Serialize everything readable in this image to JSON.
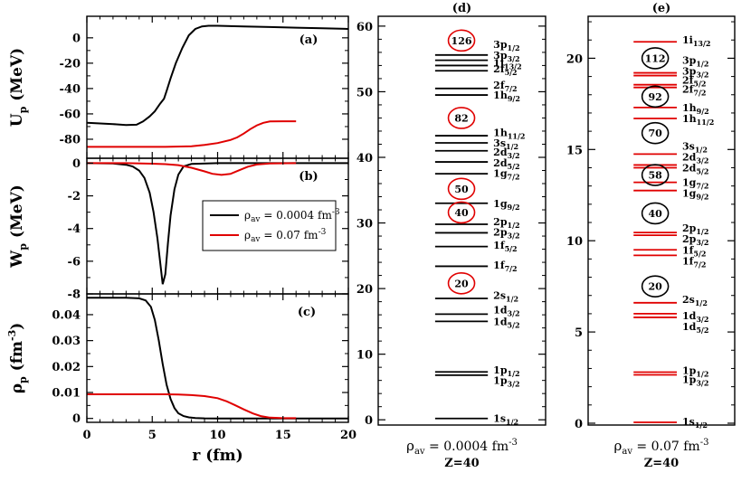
{
  "chart_data": [
    {
      "id": "a",
      "type": "line",
      "tag": "(a)",
      "ylabel_main": "U",
      "ylabel_sub": "p",
      "ylabel_unit": " (MeV)",
      "xlim": [
        0,
        20
      ],
      "ylim": [
        -95,
        17
      ],
      "yticks": [
        0,
        -20,
        -40,
        -60,
        -80
      ],
      "series": [
        {
          "name": "rho_av = 0.0004 fm^-3",
          "color": "#000000",
          "x": [
            0,
            1,
            2,
            3,
            3.8,
            4.3,
            4.8,
            5.2,
            5.6,
            5.9,
            6.1,
            6.4,
            6.8,
            7.3,
            7.8,
            8.3,
            8.8,
            9.3,
            10,
            12,
            14,
            16,
            18,
            20
          ],
          "y": [
            -67,
            -67.5,
            -68,
            -68.8,
            -68.5,
            -66,
            -62,
            -58,
            -52,
            -48,
            -42,
            -32,
            -20,
            -8,
            2,
            7,
            9,
            9.5,
            9.5,
            9.0,
            8.5,
            8.0,
            7.5,
            7.0
          ]
        },
        {
          "name": "rho_av = 0.07 fm^-3",
          "color": "#e00000",
          "x": [
            0,
            2,
            4,
            6,
            8,
            9,
            10,
            11,
            11.5,
            12,
            12.5,
            13,
            13.5,
            14,
            15,
            16
          ],
          "y": [
            -86,
            -86,
            -86,
            -86,
            -85.5,
            -84.5,
            -83,
            -80.5,
            -78.5,
            -75.5,
            -72,
            -69,
            -67,
            -66,
            -65.8,
            -65.8
          ]
        }
      ]
    },
    {
      "id": "b",
      "type": "line",
      "tag": "(b)",
      "ylabel_main": "W",
      "ylabel_sub": "p",
      "ylabel_unit": " (MeV)",
      "xlim": [
        0,
        20
      ],
      "ylim": [
        -8,
        0.3
      ],
      "yticks": [
        0,
        -2,
        -4,
        -6,
        -8
      ],
      "legend": {
        "entries": [
          {
            "sym": "ρ",
            "sub": "av",
            "text": " = 0.0004 fm",
            "sup": "-3",
            "color": "#000000"
          },
          {
            "sym": "ρ",
            "sub": "av",
            "text": " = 0.07 fm",
            "sup": "-3",
            "color": "#e00000"
          }
        ]
      },
      "series": [
        {
          "name": "rho_av = 0.0004 fm^-3",
          "color": "#000000",
          "x": [
            0,
            2,
            3,
            3.5,
            4,
            4.4,
            4.8,
            5.1,
            5.4,
            5.6,
            5.8,
            6.0,
            6.2,
            6.4,
            6.7,
            7.0,
            7.4,
            8,
            10,
            20
          ],
          "y": [
            0,
            -0.02,
            -0.1,
            -0.2,
            -0.45,
            -0.9,
            -1.8,
            -3.0,
            -4.6,
            -6.0,
            -7.4,
            -6.8,
            -4.9,
            -3.2,
            -1.6,
            -0.7,
            -0.2,
            -0.05,
            0,
            0
          ]
        },
        {
          "name": "rho_av = 0.07 fm^-3",
          "color": "#e00000",
          "x": [
            0,
            3,
            5,
            6,
            7,
            8,
            9,
            9.6,
            10.3,
            11,
            11.6,
            12.3,
            13,
            14,
            16
          ],
          "y": [
            0,
            0,
            -0.03,
            -0.06,
            -0.12,
            -0.28,
            -0.5,
            -0.65,
            -0.72,
            -0.65,
            -0.45,
            -0.22,
            -0.08,
            -0.02,
            0
          ]
        }
      ]
    },
    {
      "id": "c",
      "type": "line",
      "tag": "(c)",
      "ylabel_main": "ρ",
      "ylabel_sub": "p",
      "ylabel_unit": " (fm",
      "ylabel_sup": "-3",
      "ylabel_close": ")",
      "xlabel": "r (fm)",
      "xlim": [
        0,
        20
      ],
      "ylim": [
        -0.0015,
        0.048
      ],
      "xticks": [
        0,
        5,
        10,
        15,
        20
      ],
      "yticks": [
        0,
        0.01,
        0.02,
        0.03,
        0.04
      ],
      "yticklabels": [
        "0",
        "0.01",
        "0.02",
        "0.03",
        "0.04"
      ],
      "series": [
        {
          "name": "rho_av = 0.0004 fm^-3",
          "color": "#000000",
          "x": [
            0,
            3,
            4,
            4.5,
            4.9,
            5.2,
            5.5,
            5.8,
            6.1,
            6.4,
            6.7,
            7.0,
            7.4,
            7.8,
            8.3,
            9,
            10,
            12,
            20
          ],
          "y": [
            0.0465,
            0.0465,
            0.0463,
            0.0455,
            0.043,
            0.038,
            0.03,
            0.021,
            0.013,
            0.0075,
            0.004,
            0.002,
            0.0009,
            0.0004,
            0.00015,
            5e-05,
            0,
            0,
            0
          ]
        },
        {
          "name": "rho_av = 0.07 fm^-3",
          "color": "#e00000",
          "x": [
            0,
            3,
            6,
            7,
            8,
            9,
            10,
            10.7,
            11.3,
            12,
            12.7,
            13.3,
            14,
            15,
            16
          ],
          "y": [
            0.0093,
            0.0093,
            0.0093,
            0.0092,
            0.009,
            0.0086,
            0.0078,
            0.0066,
            0.0052,
            0.0035,
            0.0019,
            0.0009,
            0.0003,
            0.0001,
            0.0001
          ]
        }
      ]
    },
    {
      "id": "d",
      "type": "level-scheme",
      "tag": "(d)",
      "ylim": [
        -0.8,
        61.5
      ],
      "yticks": [
        0,
        10,
        20,
        30,
        40,
        50,
        60
      ],
      "line_color": "#000000",
      "bottom_sym": "ρ",
      "bottom_sub": "av",
      "bottom_text": " = 0.0004 fm",
      "bottom_sup": "-3",
      "z_label": "Z=40",
      "levels": [
        {
          "e": 0.2,
          "n": "1s",
          "j": "1/2",
          "ly": 0.2,
          "h": 1
        },
        {
          "e": 7.3,
          "n": "1p",
          "j": "1/2",
          "ly": 7.6,
          "h": 1
        },
        {
          "e": 6.8,
          "n": "1p",
          "j": "3/2",
          "ly": 6.0,
          "h": 1
        },
        {
          "e": 16.1,
          "n": "1d",
          "j": "3/2",
          "ly": 16.8,
          "h": 1
        },
        {
          "e": 15.0,
          "n": "1d",
          "j": "5/2",
          "ly": 15.0,
          "h": 1
        },
        {
          "e": 18.5,
          "n": "2s",
          "j": "1/2",
          "ly": 19.0,
          "h": 1
        },
        {
          "e": 23.4,
          "n": "1f",
          "j": "7/2",
          "ly": 23.6,
          "h": 1
        },
        {
          "e": 26.4,
          "n": "1f",
          "j": "5/2",
          "ly": 26.6,
          "h": 1
        },
        {
          "e": 28.5,
          "n": "2p",
          "j": "3/2",
          "ly": 28.6,
          "h": 1
        },
        {
          "e": 29.8,
          "n": "2p",
          "j": "1/2",
          "ly": 30.2,
          "h": 1
        },
        {
          "e": 33.0,
          "n": "1g",
          "j": "9/2",
          "ly": 33.0,
          "h": 1
        },
        {
          "e": 37.5,
          "n": "1g",
          "j": "7/2",
          "ly": 37.6,
          "h": 1
        },
        {
          "e": 39.3,
          "n": "2d",
          "j": "5/2",
          "ly": 39.2,
          "h": 1
        },
        {
          "e": 41.0,
          "n": "2d",
          "j": "3/2",
          "ly": 40.8,
          "h": 1
        },
        {
          "e": 42.2,
          "n": "3s",
          "j": "1/2",
          "ly": 42.2,
          "h": 1
        },
        {
          "e": 43.3,
          "n": "1h",
          "j": "11/2",
          "ly": 43.8,
          "h": 1
        },
        {
          "e": 49.5,
          "n": "1h",
          "j": "9/2",
          "ly": 49.5,
          "h": 1
        },
        {
          "e": 50.5,
          "n": "2f",
          "j": "7/2",
          "ly": 51.0,
          "h": 1
        },
        {
          "e": 53.2,
          "n": "2f",
          "j": "5/2",
          "ly": 53.5,
          "h": 1
        },
        {
          "e": 54.0,
          "n": "1i",
          "j": "13/2",
          "ly": 54.4,
          "h": 0
        },
        {
          "e": 54.8,
          "n": "3p",
          "j": "3/2",
          "ly": 55.6,
          "h": 1
        },
        {
          "e": 55.6,
          "n": "3p",
          "j": "1/2",
          "ly": 57.2,
          "h": 1
        }
      ],
      "magic": [
        {
          "label": "20",
          "e": 20.8
        },
        {
          "label": "40",
          "e": 31.6
        },
        {
          "label": "50",
          "e": 35.2
        },
        {
          "label": "82",
          "e": 46.0
        },
        {
          "label": "126",
          "e": 57.8
        }
      ],
      "magic_color": "#e00000"
    },
    {
      "id": "e",
      "type": "level-scheme",
      "tag": "(e)",
      "ylim": [
        -0.1,
        22.3
      ],
      "yticks": [
        0,
        5,
        10,
        15,
        20
      ],
      "line_color": "#e00000",
      "bottom_sym": "ρ",
      "bottom_sub": "av",
      "bottom_text": " = 0.07 fm",
      "bottom_sup": "-3",
      "z_label": "Z=40",
      "levels": [
        {
          "e": 0.05,
          "n": "1s",
          "j": "1/2",
          "ly": 0.1,
          "h": 1
        },
        {
          "e": 2.8,
          "n": "1p",
          "j": "1/2",
          "ly": 2.9,
          "h": 1
        },
        {
          "e": 2.65,
          "n": "1p",
          "j": "3/2",
          "ly": 2.4,
          "h": 1
        },
        {
          "e": 6.0,
          "n": "1d",
          "j": "3/2",
          "ly": 5.9,
          "h": 1
        },
        {
          "e": 5.8,
          "n": "1d",
          "j": "5/2",
          "ly": 5.3,
          "h": 1
        },
        {
          "e": 6.6,
          "n": "2s",
          "j": "1/2",
          "ly": 6.8,
          "h": 1
        },
        {
          "e": 9.2,
          "n": "1f",
          "j": "7/2",
          "ly": 8.9,
          "h": 1
        },
        {
          "e": 9.5,
          "n": "1f",
          "j": "5/2",
          "ly": 9.5,
          "h": 1
        },
        {
          "e": 10.3,
          "n": "2p",
          "j": "3/2",
          "ly": 10.1,
          "h": 1
        },
        {
          "e": 10.45,
          "n": "2p",
          "j": "1/2",
          "ly": 10.7,
          "h": 1
        },
        {
          "e": 12.75,
          "n": "1g",
          "j": "9/2",
          "ly": 12.6,
          "h": 1
        },
        {
          "e": 13.2,
          "n": "1g",
          "j": "7/2",
          "ly": 13.2,
          "h": 1
        },
        {
          "e": 14.0,
          "n": "2d",
          "j": "5/2",
          "ly": 14.0,
          "h": 1
        },
        {
          "e": 14.15,
          "n": "2d",
          "j": "3/2",
          "ly": 14.6,
          "h": 1
        },
        {
          "e": 14.75,
          "n": "3s",
          "j": "1/2",
          "ly": 15.2,
          "h": 1
        },
        {
          "e": 16.7,
          "n": "1h",
          "j": "11/2",
          "ly": 16.7,
          "h": 1
        },
        {
          "e": 17.3,
          "n": "1h",
          "j": "9/2",
          "ly": 17.3,
          "h": 1
        },
        {
          "e": 18.4,
          "n": "2f",
          "j": "7/2",
          "ly": 18.3,
          "h": 1
        },
        {
          "e": 18.55,
          "n": "2f",
          "j": "5/2",
          "ly": 18.8,
          "h": 1
        },
        {
          "e": 19.05,
          "n": "3p",
          "j": "3/2",
          "ly": 19.3,
          "h": 1
        },
        {
          "e": 19.2,
          "n": "3p",
          "j": "1/2",
          "ly": 19.9,
          "h": 1
        },
        {
          "e": 20.9,
          "n": "1i",
          "j": "13/2",
          "ly": 21.0,
          "h": 1
        }
      ],
      "magic": [
        {
          "label": "20",
          "e": 7.5
        },
        {
          "label": "40",
          "e": 11.5
        },
        {
          "label": "58",
          "e": 13.6
        },
        {
          "label": "70",
          "e": 15.9
        },
        {
          "label": "92",
          "e": 17.9
        },
        {
          "label": "112",
          "e": 20.0
        }
      ],
      "magic_color": "#000000"
    }
  ]
}
